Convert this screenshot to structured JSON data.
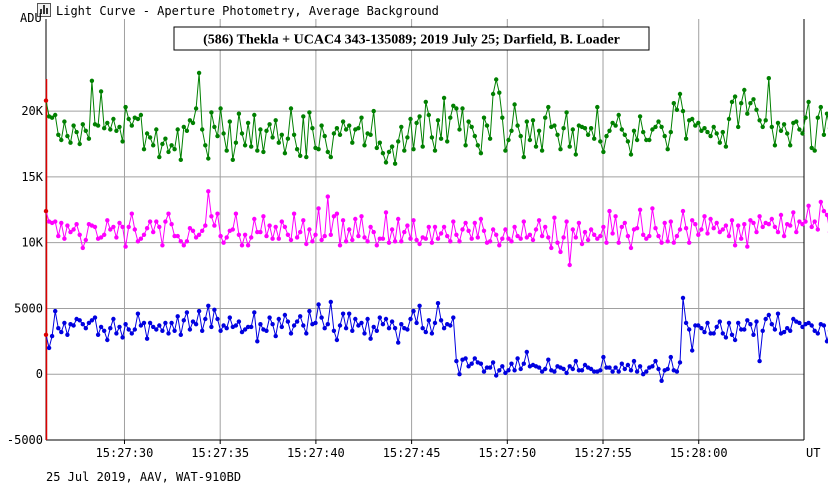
{
  "window": {
    "title": "Light Curve - Aperture Photometry, Average Background",
    "icon": "light-curve-icon"
  },
  "footer": {
    "text": "25 Jul 2019, AAV, WAT-910BD"
  },
  "colors": {
    "target": "#008000",
    "comparison": "#ff00ff",
    "occultation": "#0000e0",
    "start_marker": "#dd0000",
    "grid": "#a0a0a0"
  },
  "chart_data": {
    "type": "line",
    "title": "(586) Thekla + UCAC4 343-135089; 2019 July 25; Darfield, B. Loader",
    "ylabel": "ADU",
    "xunit_label": "UT",
    "ylim": [
      -5000,
      27000
    ],
    "xlim": [
      "15:27:25.9",
      "15:28:05.5"
    ],
    "yticks": [
      {
        "value": -5000,
        "label": "-5000"
      },
      {
        "value": 0,
        "label": "0"
      },
      {
        "value": 5000,
        "label": "5000"
      },
      {
        "value": 10000,
        "label": "10K"
      },
      {
        "value": 15000,
        "label": "15K"
      },
      {
        "value": 20000,
        "label": "20K"
      }
    ],
    "xticks": [
      "15:27:30",
      "15:27:35",
      "15:27:40",
      "15:27:45",
      "15:27:50",
      "15:27:55",
      "15:28:00"
    ],
    "grid": true,
    "legend": "none",
    "sampling_interval_s": 0.16,
    "series": [
      {
        "name": "",
        "color": "#008000",
        "values": [
          20800,
          19600,
          19500,
          19700,
          18200,
          17800,
          19200,
          18100,
          17600,
          18900,
          18400,
          17500,
          19000,
          18500,
          17900,
          22300,
          19000,
          18900,
          21500,
          18700,
          19100,
          18600,
          19400,
          18500,
          18800,
          17700,
          20300,
          19400,
          18900,
          19500,
          19400,
          19700,
          17100,
          18300,
          18000,
          17400,
          18600,
          16500,
          17500,
          17900,
          16900,
          17400,
          17100,
          18600,
          16300,
          18800,
          18500,
          19300,
          19100,
          20200,
          22900,
          18600,
          17400,
          16400,
          19900,
          18800,
          18100,
          20200,
          18300,
          17000,
          19200,
          16300,
          17600,
          19800,
          18300,
          17400,
          19100,
          17300,
          19700,
          17000,
          18600,
          16900,
          18500,
          19000,
          18000,
          19300,
          17600,
          18200,
          16800,
          17900,
          20200,
          18200,
          17100,
          16600,
          19600,
          16500,
          19900,
          18700,
          17200,
          17100,
          18900,
          18100,
          16900,
          16500,
          18300,
          18700,
          18200,
          19200,
          18600,
          18900,
          17600,
          18600,
          18700,
          19500,
          17400,
          18300,
          18200,
          20000,
          17200,
          17600,
          16800,
          16100,
          16900,
          17300,
          16000,
          17700,
          18800,
          17000,
          18000,
          19400,
          17100,
          19100,
          19600,
          17300,
          20700,
          19700,
          18000,
          17000,
          19300,
          17900,
          21000,
          17700,
          19500,
          20400,
          20200,
          18600,
          20200,
          17400,
          19200,
          18800,
          18100,
          17400,
          16800,
          19500,
          18900,
          17900,
          21300,
          22400,
          21400,
          19500,
          17000,
          17800,
          18500,
          20500,
          18900,
          18100,
          16500,
          19200,
          17800,
          19300,
          17300,
          18500,
          17000,
          19500,
          20300,
          18800,
          18900,
          18200,
          17100,
          18700,
          19900,
          17300,
          18600,
          16700,
          18900,
          18800,
          18700,
          18200,
          18700,
          17900,
          20300,
          17700,
          16900,
          18100,
          18500,
          19100,
          18900,
          19700,
          18600,
          18200,
          17700,
          16700,
          18500,
          17800,
          19600,
          18400,
          17800,
          17800,
          18600,
          18800,
          19200,
          18800,
          18100,
          17100,
          18400,
          20600,
          20100,
          21300,
          20000,
          17900,
          19300,
          19400,
          18900,
          19100,
          18500,
          18700,
          18400,
          18100,
          18800,
          18300,
          17600,
          18400,
          17300,
          19400,
          20700,
          21100,
          18800,
          20600,
          21600,
          19800,
          20600,
          20900,
          20100,
          19300,
          18800,
          19300,
          22500,
          18800,
          17400,
          19100,
          18500,
          19000,
          18300,
          17400,
          19100,
          19200,
          18600,
          18300,
          19500,
          20700,
          17200,
          17000,
          19500,
          20300,
          18200,
          19800,
          18700,
          20700,
          19900,
          20300,
          18600,
          18700,
          17800,
          19700,
          20800,
          18300,
          18100,
          19600,
          18600,
          22000,
          18200,
          18600,
          17300,
          18500,
          18700,
          20300,
          17300,
          18700,
          18600,
          19000,
          17800,
          17900,
          16400,
          18400,
          19300,
          19200,
          18800,
          17700,
          18600,
          17700,
          17900,
          18000,
          19200,
          18500,
          18600
        ]
      },
      {
        "name": "",
        "color": "#ff00ff",
        "values": [
          12400,
          11600,
          11500,
          11600,
          10500,
          11500,
          10300,
          11300,
          10800,
          11000,
          11400,
          10600,
          9600,
          10200,
          11400,
          11300,
          11200,
          10300,
          10400,
          10600,
          11700,
          11000,
          11200,
          10400,
          11500,
          11200,
          9700,
          11200,
          12200,
          11000,
          10100,
          10300,
          10600,
          11100,
          11600,
          10800,
          11600,
          11200,
          9800,
          11600,
          12200,
          11400,
          10500,
          10500,
          10100,
          9800,
          10100,
          11100,
          10900,
          10400,
          10600,
          10900,
          11300,
          13900,
          12000,
          11300,
          12200,
          10500,
          10000,
          10400,
          10900,
          11000,
          12200,
          10600,
          9800,
          10600,
          9800,
          10400,
          11800,
          10800,
          10800,
          12000,
          10500,
          11300,
          10300,
          11200,
          10300,
          11600,
          11200,
          10600,
          10200,
          12200,
          10400,
          10800,
          11700,
          9900,
          11000,
          10100,
          10600,
          12600,
          10200,
          10500,
          13500,
          10600,
          12000,
          12200,
          9800,
          11700,
          10100,
          11000,
          10200,
          11800,
          10500,
          12000,
          10400,
          10100,
          11200,
          10800,
          9800,
          10300,
          10300,
          12300,
          10000,
          11000,
          10100,
          11800,
          10100,
          10800,
          11300,
          10300,
          11700,
          10200,
          9900,
          10400,
          10300,
          11200,
          10000,
          11200,
          10300,
          10700,
          11200,
          10500,
          10100,
          11600,
          10600,
          10100,
          11000,
          11500,
          10900,
          10300,
          11500,
          10400,
          11800,
          10900,
          10000,
          10100,
          11000,
          10600,
          9800,
          10300,
          11000,
          10300,
          10100,
          11200,
          10500,
          10300,
          11600,
          10400,
          10600,
          10200,
          11000,
          11700,
          10500,
          11200,
          10400,
          9600,
          11900,
          10000,
          9300,
          10400,
          11600,
          8300,
          11000,
          10400,
          11500,
          9900,
          10800,
          10200,
          11000,
          10600,
          10300,
          10500,
          11200,
          10000,
          12400,
          10700,
          12000,
          10000,
          11200,
          11500,
          10500,
          9600,
          11000,
          11100,
          12500,
          10600,
          10300,
          10500,
          12600,
          11100,
          10500,
          10000,
          11500,
          10100,
          11600,
          10000,
          10500,
          11000,
          12400,
          11100,
          10000,
          11700,
          11400,
          10600,
          11000,
          12000,
          10700,
          11800,
          11100,
          11500,
          10800,
          11000,
          11300,
          10500,
          11700,
          9800,
          11300,
          10300,
          11400,
          9700,
          11700,
          11500,
          10800,
          12000,
          11200,
          11500,
          11400,
          11800,
          11200,
          10800,
          12100,
          10500,
          11400,
          11300,
          12300,
          10800,
          11600,
          11400,
          11600,
          12800,
          11200,
          11600,
          11000,
          13100,
          12400,
          12100,
          10800,
          11200,
          12800,
          12100,
          11600,
          10700,
          12200,
          12000,
          12100,
          11700,
          12000,
          11900,
          10200,
          10700,
          11000,
          10600,
          11100,
          10600,
          10800,
          10300,
          9900,
          10300,
          9900,
          10100,
          11400,
          11200,
          11700,
          10200,
          11800,
          11100,
          11800,
          11500,
          11700,
          10400,
          10800,
          10300,
          10900,
          11300,
          11000,
          11100,
          11400,
          11800,
          10500,
          11100,
          10200,
          11800,
          10800,
          10000,
          11700,
          10500,
          12100,
          11800,
          10300,
          11500,
          11800,
          11200,
          9800,
          10600,
          9600,
          10400,
          11600,
          11000,
          10200,
          11700,
          9800,
          10800,
          10100,
          11100,
          10700,
          12000,
          10900,
          11100,
          9900,
          11400,
          10300,
          9800,
          10600,
          11000,
          11800
        ]
      },
      {
        "name": "",
        "color": "#0000e0",
        "values": [
          3000,
          2000,
          2900,
          4800,
          3500,
          3200,
          3900,
          3000,
          3800,
          3700,
          4200,
          4100,
          3800,
          3500,
          3900,
          4100,
          4300,
          3000,
          3600,
          3300,
          2600,
          3500,
          4200,
          3100,
          3600,
          2800,
          3800,
          3400,
          3100,
          3400,
          4600,
          3700,
          3900,
          2700,
          3900,
          3600,
          3400,
          3700,
          3300,
          3900,
          3100,
          3900,
          3300,
          4400,
          3000,
          4100,
          4700,
          3400,
          4000,
          3800,
          4800,
          3300,
          4200,
          5200,
          3600,
          4900,
          4200,
          3300,
          3700,
          3500,
          4300,
          3600,
          3700,
          4000,
          3200,
          3400,
          3600,
          3600,
          4700,
          2500,
          3800,
          3400,
          3300,
          4300,
          3800,
          2900,
          4200,
          3600,
          4500,
          4000,
          3100,
          3700,
          4000,
          4400,
          3700,
          3100,
          4800,
          3800,
          3900,
          5300,
          4300,
          3500,
          3800,
          5500,
          3300,
          2600,
          3700,
          4600,
          3500,
          4600,
          3300,
          4200,
          3700,
          3900,
          3100,
          4200,
          2700,
          3600,
          3300,
          4300,
          3800,
          4200,
          3500,
          4000,
          3500,
          2400,
          3800,
          3500,
          3400,
          4200,
          4800,
          3900,
          5200,
          3500,
          3200,
          4100,
          3100,
          3900,
          5400,
          4100,
          3500,
          3800,
          3700,
          4300,
          1000,
          0,
          1100,
          1200,
          600,
          800,
          1200,
          900,
          800,
          200,
          500,
          500,
          900,
          -100,
          300,
          600,
          100,
          300,
          800,
          300,
          1200,
          400,
          800,
          1700,
          600,
          700,
          600,
          500,
          200,
          400,
          1100,
          300,
          200,
          600,
          500,
          400,
          100,
          600,
          400,
          1000,
          300,
          300,
          700,
          500,
          400,
          200,
          200,
          300,
          1300,
          500,
          500,
          200,
          500,
          200,
          800,
          400,
          700,
          300,
          1000,
          200,
          600,
          0,
          200,
          500,
          600,
          1000,
          400,
          -500,
          300,
          400,
          1300,
          300,
          200,
          900,
          5800,
          3900,
          3400,
          1800,
          3700,
          3700,
          3500,
          3200,
          3900,
          3100,
          3100,
          3600,
          4000,
          3100,
          2800,
          3900,
          3000,
          2600,
          3900,
          3400,
          3400,
          4100,
          3800,
          3000,
          4000,
          1000,
          3300,
          4200,
          4500,
          3800,
          3400,
          4600,
          3100,
          3200,
          3500,
          3300,
          4200,
          4000,
          3900,
          3600,
          3800,
          3900,
          3700,
          3300,
          3100,
          3800,
          3700,
          2500,
          3300,
          3800,
          3100,
          4300,
          3800,
          4100,
          3900,
          3300,
          3600,
          4800,
          3900,
          3400,
          3100,
          3300,
          3800,
          3600,
          3600,
          3800,
          3300,
          3400,
          3200,
          3400,
          3000,
          3700,
          3500,
          3500,
          3900,
          3100,
          3000,
          4300,
          4100,
          3900,
          2500,
          4900,
          4700,
          4600,
          4300,
          4100,
          4400,
          3700,
          4200,
          3400,
          3900,
          3800,
          3700,
          3600,
          2900,
          3500,
          3400,
          3400,
          3800,
          4400,
          3700,
          3900,
          3100,
          3700,
          3100,
          4800,
          3400,
          3100,
          3100,
          3200,
          3900,
          3700,
          3900,
          3500,
          5800,
          3200,
          3700,
          3200,
          2700,
          3900,
          3000,
          2500,
          3900,
          3300,
          3500,
          3400,
          3600,
          4500,
          3200,
          2300,
          3800,
          4100,
          3100,
          3900,
          3100,
          4100,
          3400,
          3400,
          3300,
          3700,
          3300,
          3700,
          2800,
          3700,
          2600,
          4800,
          4300,
          3000,
          3000
        ]
      }
    ]
  }
}
